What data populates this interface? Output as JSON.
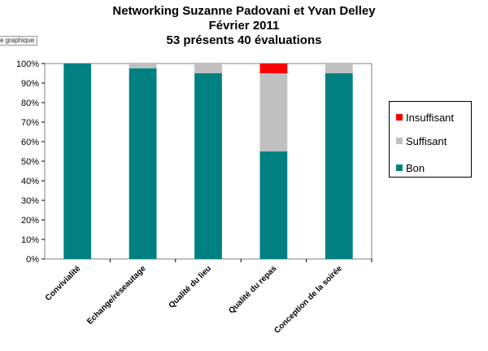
{
  "app": {
    "tab_label": "e graphique"
  },
  "chart_data": {
    "type": "bar",
    "stacked": true,
    "title": [
      "Networking Suzanne Padovani et Yvan Delley",
      "Février 2011",
      "53 présents 40 évaluations"
    ],
    "categories": [
      "Convivialité",
      "Echange/réseautage",
      "Qualité du lieu",
      "Qualité du repas",
      "Conception de la soirée"
    ],
    "series": [
      {
        "name": "Bon",
        "color": "#008080",
        "values": [
          100,
          97.5,
          95,
          55,
          95
        ]
      },
      {
        "name": "Suffisant",
        "color": "#c0c0c0",
        "values": [
          0,
          2.5,
          5,
          40,
          5
        ]
      },
      {
        "name": "Insuffisant",
        "color": "#ff0000",
        "values": [
          0,
          0,
          0,
          5,
          0
        ]
      }
    ],
    "y_ticks": [
      "0%",
      "10%",
      "20%",
      "30%",
      "40%",
      "50%",
      "60%",
      "70%",
      "80%",
      "90%",
      "100%"
    ],
    "ylim": [
      0,
      100
    ],
    "grid": false,
    "legend_position": "right",
    "legend_order": [
      "Insuffisant",
      "Suffisant",
      "Bon"
    ],
    "plot_background": "#ffffff",
    "plot_border_color": "#808080"
  }
}
